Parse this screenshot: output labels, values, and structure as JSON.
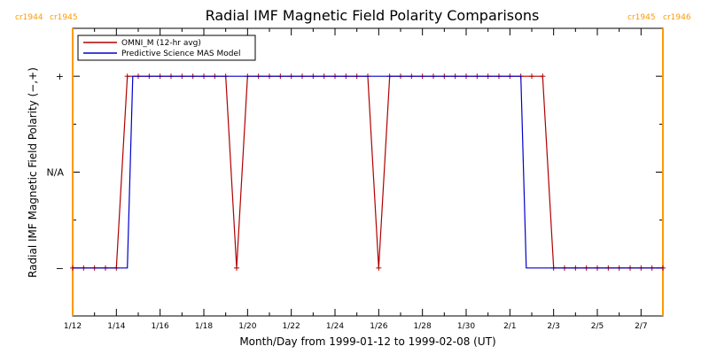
{
  "chart_data": {
    "type": "line",
    "title": "Radial IMF Magnetic Field Polarity Comparisons",
    "xlabel": "Month/Day from 1999-01-12 to 1999-02-08 (UT)",
    "ylabel": "Radial IMF Magnetic Field Polarity (−,+)",
    "x_start_date": "1999-01-12",
    "x_end_date": "1999-02-08",
    "x_tick_labels": [
      "1/12",
      "1/14",
      "1/16",
      "1/18",
      "1/20",
      "1/22",
      "1/24",
      "1/26",
      "1/28",
      "1/30",
      "2/1",
      "2/3",
      "2/5",
      "2/7"
    ],
    "y_tick_labels": [
      "+",
      "N/A",
      "−"
    ],
    "ylim": [
      -1.5,
      1.5
    ],
    "legend_placement": "top-left",
    "rotation_markers": [
      {
        "date": "1999-01-12",
        "left_label": "cr1944",
        "right_label": "cr1945",
        "color": "#ff9900"
      },
      {
        "date": "1999-02-08",
        "left_label": "cr1945",
        "right_label": "cr1946",
        "color": "#ff9900"
      }
    ],
    "series": [
      {
        "name": "OMNI_M (12-hr avg)",
        "color": "#b00000",
        "marker": "+",
        "points": [
          [
            "1999-01-12T00:00",
            -1
          ],
          [
            "1999-01-12T12:00",
            -1
          ],
          [
            "1999-01-13T00:00",
            -1
          ],
          [
            "1999-01-13T12:00",
            -1
          ],
          [
            "1999-01-14T00:00",
            -1
          ],
          [
            "1999-01-14T12:00",
            1
          ],
          [
            "1999-01-15T00:00",
            1
          ],
          [
            "1999-01-15T12:00",
            1
          ],
          [
            "1999-01-16T00:00",
            1
          ],
          [
            "1999-01-16T12:00",
            1
          ],
          [
            "1999-01-17T00:00",
            1
          ],
          [
            "1999-01-17T12:00",
            1
          ],
          [
            "1999-01-18T00:00",
            1
          ],
          [
            "1999-01-18T12:00",
            1
          ],
          [
            "1999-01-19T00:00",
            1
          ],
          [
            "1999-01-19T12:00",
            -1
          ],
          [
            "1999-01-20T00:00",
            1
          ],
          [
            "1999-01-20T12:00",
            1
          ],
          [
            "1999-01-21T00:00",
            1
          ],
          [
            "1999-01-21T12:00",
            1
          ],
          [
            "1999-01-22T00:00",
            1
          ],
          [
            "1999-01-22T12:00",
            1
          ],
          [
            "1999-01-23T00:00",
            1
          ],
          [
            "1999-01-23T12:00",
            1
          ],
          [
            "1999-01-24T00:00",
            1
          ],
          [
            "1999-01-24T12:00",
            1
          ],
          [
            "1999-01-25T00:00",
            1
          ],
          [
            "1999-01-25T12:00",
            1
          ],
          [
            "1999-01-26T00:00",
            -1
          ],
          [
            "1999-01-26T12:00",
            1
          ],
          [
            "1999-01-27T00:00",
            1
          ],
          [
            "1999-01-27T12:00",
            1
          ],
          [
            "1999-01-28T00:00",
            1
          ],
          [
            "1999-01-28T12:00",
            1
          ],
          [
            "1999-01-29T00:00",
            1
          ],
          [
            "1999-01-29T12:00",
            1
          ],
          [
            "1999-01-30T00:00",
            1
          ],
          [
            "1999-01-30T12:00",
            1
          ],
          [
            "1999-01-31T00:00",
            1
          ],
          [
            "1999-01-31T12:00",
            1
          ],
          [
            "1999-02-01T00:00",
            1
          ],
          [
            "1999-02-01T12:00",
            1
          ],
          [
            "1999-02-02T00:00",
            1
          ],
          [
            "1999-02-02T12:00",
            1
          ],
          [
            "1999-02-03T00:00",
            -1
          ],
          [
            "1999-02-03T12:00",
            -1
          ],
          [
            "1999-02-04T00:00",
            -1
          ],
          [
            "1999-02-04T12:00",
            -1
          ],
          [
            "1999-02-05T00:00",
            -1
          ],
          [
            "1999-02-05T12:00",
            -1
          ],
          [
            "1999-02-06T00:00",
            -1
          ],
          [
            "1999-02-06T12:00",
            -1
          ],
          [
            "1999-02-07T00:00",
            -1
          ],
          [
            "1999-02-07T12:00",
            -1
          ],
          [
            "1999-02-08T00:00",
            -1
          ]
        ]
      },
      {
        "name": "Predictive Science MAS Model",
        "color": "#0000cc",
        "marker": "none",
        "points": [
          [
            "1999-01-12T00:00",
            -1
          ],
          [
            "1999-01-14T12:00",
            -1
          ],
          [
            "1999-01-14T18:00",
            1
          ],
          [
            "1999-02-01T12:00",
            1
          ],
          [
            "1999-02-01T18:00",
            -1
          ],
          [
            "1999-02-08T00:00",
            -1
          ]
        ]
      }
    ]
  }
}
